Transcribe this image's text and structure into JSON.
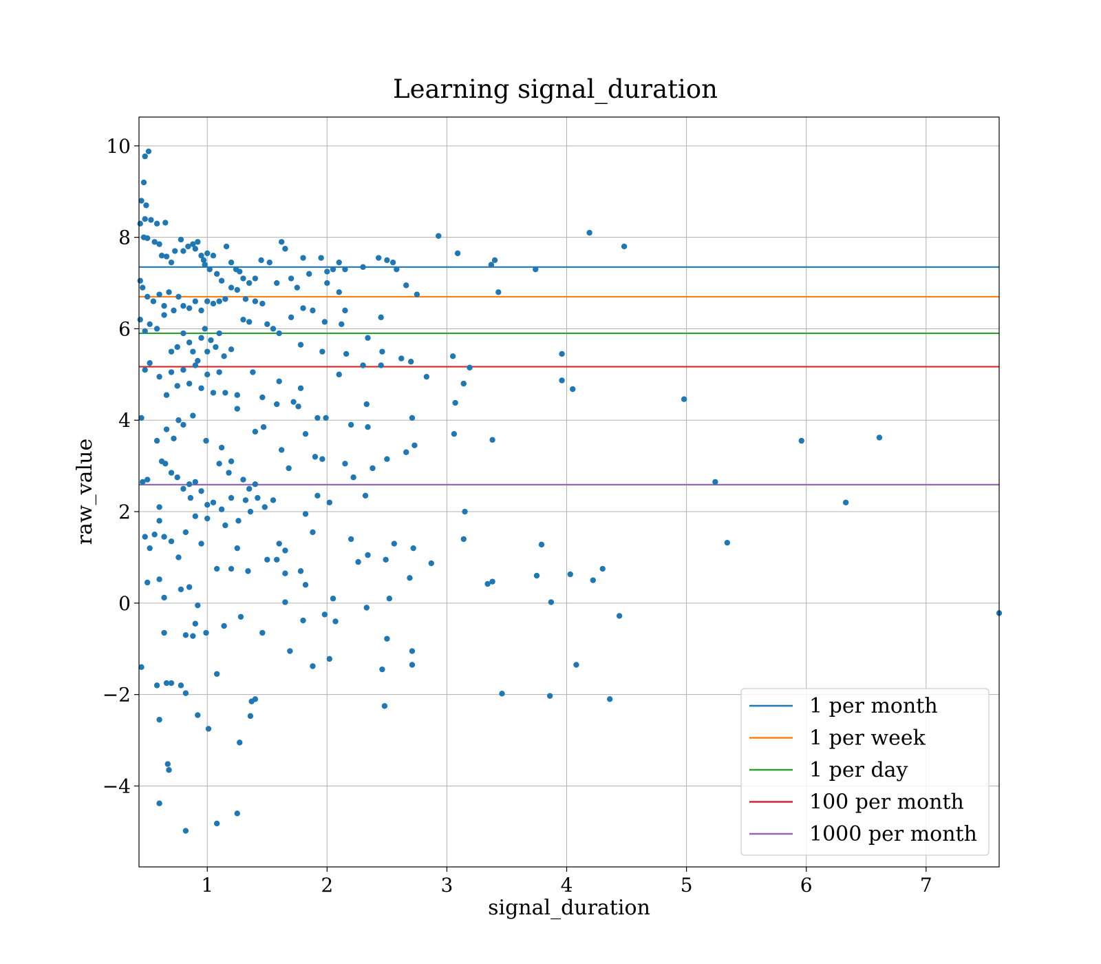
{
  "chart_data": {
    "type": "scatter",
    "title": "Learning signal_duration",
    "xlabel": "signal_duration",
    "ylabel": "raw_value",
    "xlim": [
      0.43,
      7.61
    ],
    "ylim": [
      -5.77,
      10.63
    ],
    "xticks": [
      1,
      2,
      3,
      4,
      5,
      6,
      7
    ],
    "xtick_labels": [
      "1",
      "2",
      "3",
      "4",
      "5",
      "6",
      "7"
    ],
    "yticks": [
      -4,
      -2,
      0,
      2,
      4,
      6,
      8,
      10
    ],
    "ytick_labels": [
      "−4",
      "−2",
      "0",
      "2",
      "4",
      "6",
      "8",
      "10"
    ],
    "grid": true,
    "legend_position": "lower-right",
    "point_color": "#1f77b4",
    "hlines": [
      {
        "name": "1 per month",
        "y": 7.35,
        "color": "#1f77b4"
      },
      {
        "name": "1 per week",
        "y": 6.7,
        "color": "#ff7f0e"
      },
      {
        "name": "1 per day",
        "y": 5.9,
        "color": "#2ca02c"
      },
      {
        "name": "100 per month",
        "y": 5.17,
        "color": "#d62728"
      },
      {
        "name": "1000 per month",
        "y": 2.59,
        "color": "#9467bd"
      }
    ],
    "points": [
      [
        0.51,
        9.88
      ],
      [
        0.48,
        9.77
      ],
      [
        0.47,
        9.2
      ],
      [
        0.45,
        8.8
      ],
      [
        0.49,
        8.7
      ],
      [
        0.44,
        8.3
      ],
      [
        0.48,
        8.4
      ],
      [
        0.53,
        8.38
      ],
      [
        0.58,
        8.3
      ],
      [
        0.65,
        8.32
      ],
      [
        0.47,
        8.0
      ],
      [
        0.5,
        7.98
      ],
      [
        0.56,
        7.9
      ],
      [
        0.6,
        7.85
      ],
      [
        0.62,
        7.6
      ],
      [
        0.66,
        7.58
      ],
      [
        0.7,
        7.45
      ],
      [
        0.73,
        7.7
      ],
      [
        0.78,
        7.95
      ],
      [
        0.8,
        7.7
      ],
      [
        0.84,
        7.8
      ],
      [
        0.88,
        7.85
      ],
      [
        0.9,
        7.75
      ],
      [
        0.92,
        7.9
      ],
      [
        0.95,
        7.6
      ],
      [
        0.97,
        7.5
      ],
      [
        0.98,
        7.4
      ],
      [
        1.0,
        7.65
      ],
      [
        1.02,
        7.3
      ],
      [
        1.05,
        7.6
      ],
      [
        1.08,
        7.2
      ],
      [
        1.12,
        7.05
      ],
      [
        1.16,
        7.8
      ],
      [
        1.2,
        7.45
      ],
      [
        1.24,
        7.3
      ],
      [
        1.27,
        7.25
      ],
      [
        1.3,
        7.1
      ],
      [
        1.35,
        7.0
      ],
      [
        1.4,
        7.1
      ],
      [
        1.45,
        7.5
      ],
      [
        1.52,
        7.45
      ],
      [
        1.58,
        7.0
      ],
      [
        1.62,
        7.9
      ],
      [
        1.65,
        7.75
      ],
      [
        1.7,
        7.1
      ],
      [
        1.75,
        6.9
      ],
      [
        1.8,
        7.55
      ],
      [
        1.85,
        7.2
      ],
      [
        1.95,
        7.55
      ],
      [
        2.0,
        7.25
      ],
      [
        2.05,
        7.3
      ],
      [
        2.1,
        7.45
      ],
      [
        2.15,
        7.3
      ],
      [
        2.3,
        7.35
      ],
      [
        2.43,
        7.55
      ],
      [
        2.5,
        7.5
      ],
      [
        2.55,
        7.45
      ],
      [
        2.58,
        7.3
      ],
      [
        2.93,
        8.03
      ],
      [
        3.09,
        7.65
      ],
      [
        3.37,
        7.4
      ],
      [
        3.4,
        7.5
      ],
      [
        3.74,
        7.3
      ],
      [
        4.19,
        8.1
      ],
      [
        4.48,
        7.8
      ],
      [
        0.44,
        7.05
      ],
      [
        0.46,
        6.9
      ],
      [
        0.5,
        6.7
      ],
      [
        0.55,
        6.6
      ],
      [
        0.6,
        6.75
      ],
      [
        0.64,
        6.5
      ],
      [
        0.68,
        6.8
      ],
      [
        0.72,
        6.4
      ],
      [
        0.76,
        6.7
      ],
      [
        0.8,
        6.5
      ],
      [
        0.85,
        6.45
      ],
      [
        0.9,
        6.6
      ],
      [
        0.95,
        6.4
      ],
      [
        1.0,
        6.6
      ],
      [
        1.05,
        6.55
      ],
      [
        1.1,
        6.6
      ],
      [
        1.15,
        6.65
      ],
      [
        1.2,
        6.9
      ],
      [
        1.25,
        6.85
      ],
      [
        1.32,
        6.65
      ],
      [
        1.4,
        6.6
      ],
      [
        1.46,
        6.55
      ],
      [
        1.7,
        6.25
      ],
      [
        1.8,
        6.45
      ],
      [
        1.88,
        6.4
      ],
      [
        2.0,
        7.0
      ],
      [
        2.1,
        6.8
      ],
      [
        2.15,
        6.4
      ],
      [
        2.45,
        6.25
      ],
      [
        2.66,
        6.95
      ],
      [
        2.75,
        6.75
      ],
      [
        3.43,
        6.8
      ],
      [
        0.44,
        6.2
      ],
      [
        0.48,
        5.95
      ],
      [
        0.52,
        6.1
      ],
      [
        0.58,
        6.0
      ],
      [
        0.64,
        6.3
      ],
      [
        0.7,
        5.5
      ],
      [
        0.75,
        5.6
      ],
      [
        0.8,
        5.9
      ],
      [
        0.85,
        5.7
      ],
      [
        0.88,
        5.5
      ],
      [
        0.92,
        5.3
      ],
      [
        0.95,
        5.8
      ],
      [
        0.98,
        6.0
      ],
      [
        1.0,
        5.5
      ],
      [
        1.03,
        5.75
      ],
      [
        1.07,
        5.6
      ],
      [
        1.1,
        5.9
      ],
      [
        1.14,
        5.4
      ],
      [
        1.2,
        5.55
      ],
      [
        1.3,
        6.2
      ],
      [
        1.35,
        6.15
      ],
      [
        1.5,
        6.1
      ],
      [
        1.55,
        6.0
      ],
      [
        1.6,
        5.9
      ],
      [
        1.78,
        5.65
      ],
      [
        1.96,
        5.5
      ],
      [
        1.98,
        6.15
      ],
      [
        2.12,
        6.1
      ],
      [
        2.16,
        5.45
      ],
      [
        2.34,
        5.8
      ],
      [
        2.46,
        5.5
      ],
      [
        2.62,
        5.35
      ],
      [
        2.7,
        5.28
      ],
      [
        3.05,
        5.4
      ],
      [
        3.19,
        5.15
      ],
      [
        3.96,
        5.45
      ],
      [
        0.48,
        5.1
      ],
      [
        0.52,
        5.25
      ],
      [
        0.6,
        4.95
      ],
      [
        0.66,
        4.55
      ],
      [
        0.7,
        5.05
      ],
      [
        0.75,
        4.75
      ],
      [
        0.8,
        5.1
      ],
      [
        0.85,
        4.8
      ],
      [
        0.9,
        5.2
      ],
      [
        0.95,
        4.7
      ],
      [
        1.0,
        5.0
      ],
      [
        1.05,
        4.6
      ],
      [
        1.1,
        5.05
      ],
      [
        1.15,
        4.6
      ],
      [
        1.25,
        4.55
      ],
      [
        1.38,
        5.05
      ],
      [
        1.46,
        4.5
      ],
      [
        1.6,
        4.85
      ],
      [
        1.72,
        4.4
      ],
      [
        1.78,
        4.7
      ],
      [
        2.1,
        5.0
      ],
      [
        2.3,
        5.2
      ],
      [
        2.45,
        5.2
      ],
      [
        2.83,
        4.95
      ],
      [
        3.07,
        4.38
      ],
      [
        3.14,
        4.8
      ],
      [
        3.96,
        4.87
      ],
      [
        4.05,
        4.68
      ],
      [
        4.98,
        4.46
      ],
      [
        0.45,
        4.05
      ],
      [
        0.58,
        3.55
      ],
      [
        0.62,
        3.1
      ],
      [
        0.66,
        3.8
      ],
      [
        0.72,
        3.6
      ],
      [
        0.76,
        4.0
      ],
      [
        0.8,
        3.9
      ],
      [
        0.88,
        4.1
      ],
      [
        0.99,
        3.55
      ],
      [
        1.12,
        3.4
      ],
      [
        1.25,
        4.25
      ],
      [
        1.4,
        3.75
      ],
      [
        1.47,
        3.85
      ],
      [
        1.58,
        4.35
      ],
      [
        1.62,
        3.35
      ],
      [
        1.76,
        4.3
      ],
      [
        1.82,
        3.7
      ],
      [
        1.92,
        4.05
      ],
      [
        1.99,
        4.05
      ],
      [
        2.2,
        3.9
      ],
      [
        2.33,
        4.35
      ],
      [
        2.34,
        3.85
      ],
      [
        2.71,
        4.05
      ],
      [
        3.06,
        3.7
      ],
      [
        3.38,
        3.57
      ],
      [
        5.96,
        3.55
      ],
      [
        6.61,
        3.62
      ],
      [
        0.46,
        2.65
      ],
      [
        0.5,
        2.7
      ],
      [
        0.6,
        2.1
      ],
      [
        0.65,
        3.05
      ],
      [
        0.7,
        2.85
      ],
      [
        0.75,
        2.75
      ],
      [
        0.8,
        2.5
      ],
      [
        0.85,
        2.6
      ],
      [
        0.9,
        2.65
      ],
      [
        0.95,
        2.45
      ],
      [
        1.0,
        2.15
      ],
      [
        1.1,
        3.05
      ],
      [
        1.18,
        2.85
      ],
      [
        1.2,
        3.1
      ],
      [
        1.3,
        2.7
      ],
      [
        1.35,
        2.5
      ],
      [
        1.4,
        2.6
      ],
      [
        1.68,
        2.95
      ],
      [
        1.9,
        3.2
      ],
      [
        1.96,
        3.15
      ],
      [
        2.15,
        3.05
      ],
      [
        2.22,
        2.75
      ],
      [
        2.38,
        2.95
      ],
      [
        2.5,
        3.15
      ],
      [
        2.66,
        3.3
      ],
      [
        2.73,
        3.45
      ],
      [
        5.24,
        2.65
      ],
      [
        0.48,
        1.45
      ],
      [
        0.52,
        1.2
      ],
      [
        0.56,
        1.5
      ],
      [
        0.6,
        1.8
      ],
      [
        0.64,
        1.45
      ],
      [
        0.7,
        1.35
      ],
      [
        0.76,
        1.0
      ],
      [
        0.82,
        1.55
      ],
      [
        0.86,
        2.3
      ],
      [
        0.9,
        1.9
      ],
      [
        0.95,
        1.3
      ],
      [
        1.0,
        1.85
      ],
      [
        1.05,
        2.2
      ],
      [
        1.12,
        2.05
      ],
      [
        1.15,
        1.7
      ],
      [
        1.2,
        2.3
      ],
      [
        1.26,
        1.8
      ],
      [
        1.32,
        2.25
      ],
      [
        1.36,
        2.0
      ],
      [
        1.42,
        2.3
      ],
      [
        1.48,
        2.1
      ],
      [
        1.55,
        2.25
      ],
      [
        1.6,
        1.3
      ],
      [
        1.65,
        1.15
      ],
      [
        1.82,
        1.95
      ],
      [
        1.88,
        1.55
      ],
      [
        1.92,
        2.35
      ],
      [
        2.02,
        2.2
      ],
      [
        2.2,
        1.4
      ],
      [
        2.32,
        2.35
      ],
      [
        2.56,
        1.3
      ],
      [
        2.72,
        1.2
      ],
      [
        3.15,
        2.0
      ],
      [
        3.14,
        1.4
      ],
      [
        6.33,
        2.2
      ],
      [
        5.34,
        1.32
      ],
      [
        3.79,
        1.28
      ],
      [
        0.5,
        0.45
      ],
      [
        0.6,
        0.52
      ],
      [
        0.64,
        0.12
      ],
      [
        0.78,
        0.3
      ],
      [
        0.85,
        0.35
      ],
      [
        0.92,
        -0.05
      ],
      [
        1.08,
        0.75
      ],
      [
        1.2,
        0.75
      ],
      [
        1.25,
        1.2
      ],
      [
        1.34,
        0.7
      ],
      [
        1.5,
        0.95
      ],
      [
        1.58,
        0.95
      ],
      [
        1.65,
        0.65
      ],
      [
        1.78,
        0.7
      ],
      [
        1.82,
        0.4
      ],
      [
        2.05,
        0.1
      ],
      [
        2.26,
        0.9
      ],
      [
        2.34,
        1.05
      ],
      [
        2.49,
        0.95
      ],
      [
        2.52,
        0.1
      ],
      [
        2.69,
        0.55
      ],
      [
        2.87,
        0.87
      ],
      [
        3.34,
        0.42
      ],
      [
        3.38,
        0.47
      ],
      [
        3.75,
        0.6
      ],
      [
        3.87,
        0.02
      ],
      [
        4.03,
        0.63
      ],
      [
        4.22,
        0.5
      ],
      [
        4.3,
        0.75
      ],
      [
        0.45,
        -1.4
      ],
      [
        0.64,
        -0.65
      ],
      [
        0.7,
        -1.75
      ],
      [
        0.78,
        -1.8
      ],
      [
        0.82,
        -0.7
      ],
      [
        0.88,
        -0.72
      ],
      [
        0.9,
        -0.45
      ],
      [
        0.99,
        -0.65
      ],
      [
        1.14,
        -0.5
      ],
      [
        1.28,
        -0.3
      ],
      [
        1.46,
        -0.65
      ],
      [
        1.65,
        0.02
      ],
      [
        1.69,
        -1.05
      ],
      [
        1.8,
        -0.38
      ],
      [
        1.88,
        -1.38
      ],
      [
        1.98,
        -0.25
      ],
      [
        2.07,
        -0.4
      ],
      [
        2.02,
        -1.22
      ],
      [
        2.33,
        -0.1
      ],
      [
        2.46,
        -1.45
      ],
      [
        2.5,
        -0.78
      ],
      [
        2.71,
        -1.05
      ],
      [
        2.71,
        -1.35
      ],
      [
        4.44,
        -0.28
      ],
      [
        7.61,
        -0.22
      ],
      [
        4.08,
        -1.35
      ],
      [
        0.58,
        -1.8
      ],
      [
        0.6,
        -2.55
      ],
      [
        0.66,
        -1.75
      ],
      [
        0.82,
        -1.97
      ],
      [
        0.92,
        -2.45
      ],
      [
        1.01,
        -2.75
      ],
      [
        1.08,
        -1.55
      ],
      [
        1.36,
        -2.47
      ],
      [
        1.37,
        -2.15
      ],
      [
        1.4,
        -2.1
      ],
      [
        2.48,
        -2.25
      ],
      [
        3.46,
        -1.98
      ],
      [
        3.86,
        -2.03
      ],
      [
        4.36,
        -2.1
      ],
      [
        0.6,
        -4.38
      ],
      [
        0.67,
        -3.52
      ],
      [
        0.68,
        -3.65
      ],
      [
        0.82,
        -4.98
      ],
      [
        1.08,
        -4.82
      ],
      [
        1.25,
        -4.6
      ],
      [
        1.27,
        -3.05
      ]
    ]
  }
}
